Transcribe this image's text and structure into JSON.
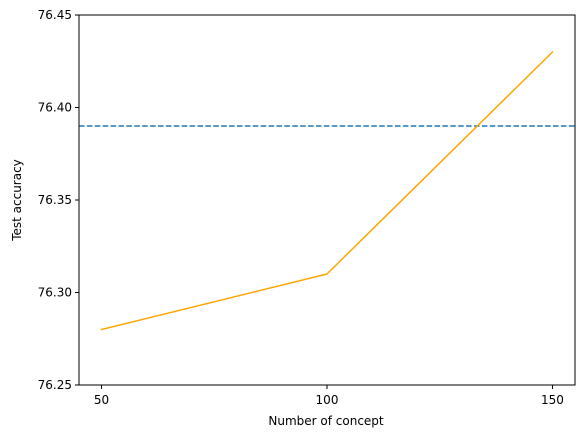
{
  "chart_data": {
    "type": "line",
    "title": "",
    "xlabel": "Number of concept",
    "ylabel": "Test accuracy",
    "x": [
      50,
      100,
      150
    ],
    "xticks": [
      "50",
      "100",
      "150"
    ],
    "xtick_values": [
      50,
      100,
      150
    ],
    "yticks": [
      "76.25",
      "76.30",
      "76.35",
      "76.40",
      "76.45"
    ],
    "ytick_values": [
      76.25,
      76.3,
      76.35,
      76.4,
      76.45
    ],
    "xlim": [
      45,
      155
    ],
    "ylim": [
      76.25,
      76.45
    ],
    "grid": false,
    "series": [
      {
        "values": [
          76.28,
          76.31,
          76.43
        ],
        "color": "#ffa500",
        "style": "solid"
      }
    ],
    "reference_lines": [
      {
        "orientation": "horizontal",
        "y": 76.39,
        "color": "#1f77b4",
        "style": "dashed"
      }
    ]
  }
}
